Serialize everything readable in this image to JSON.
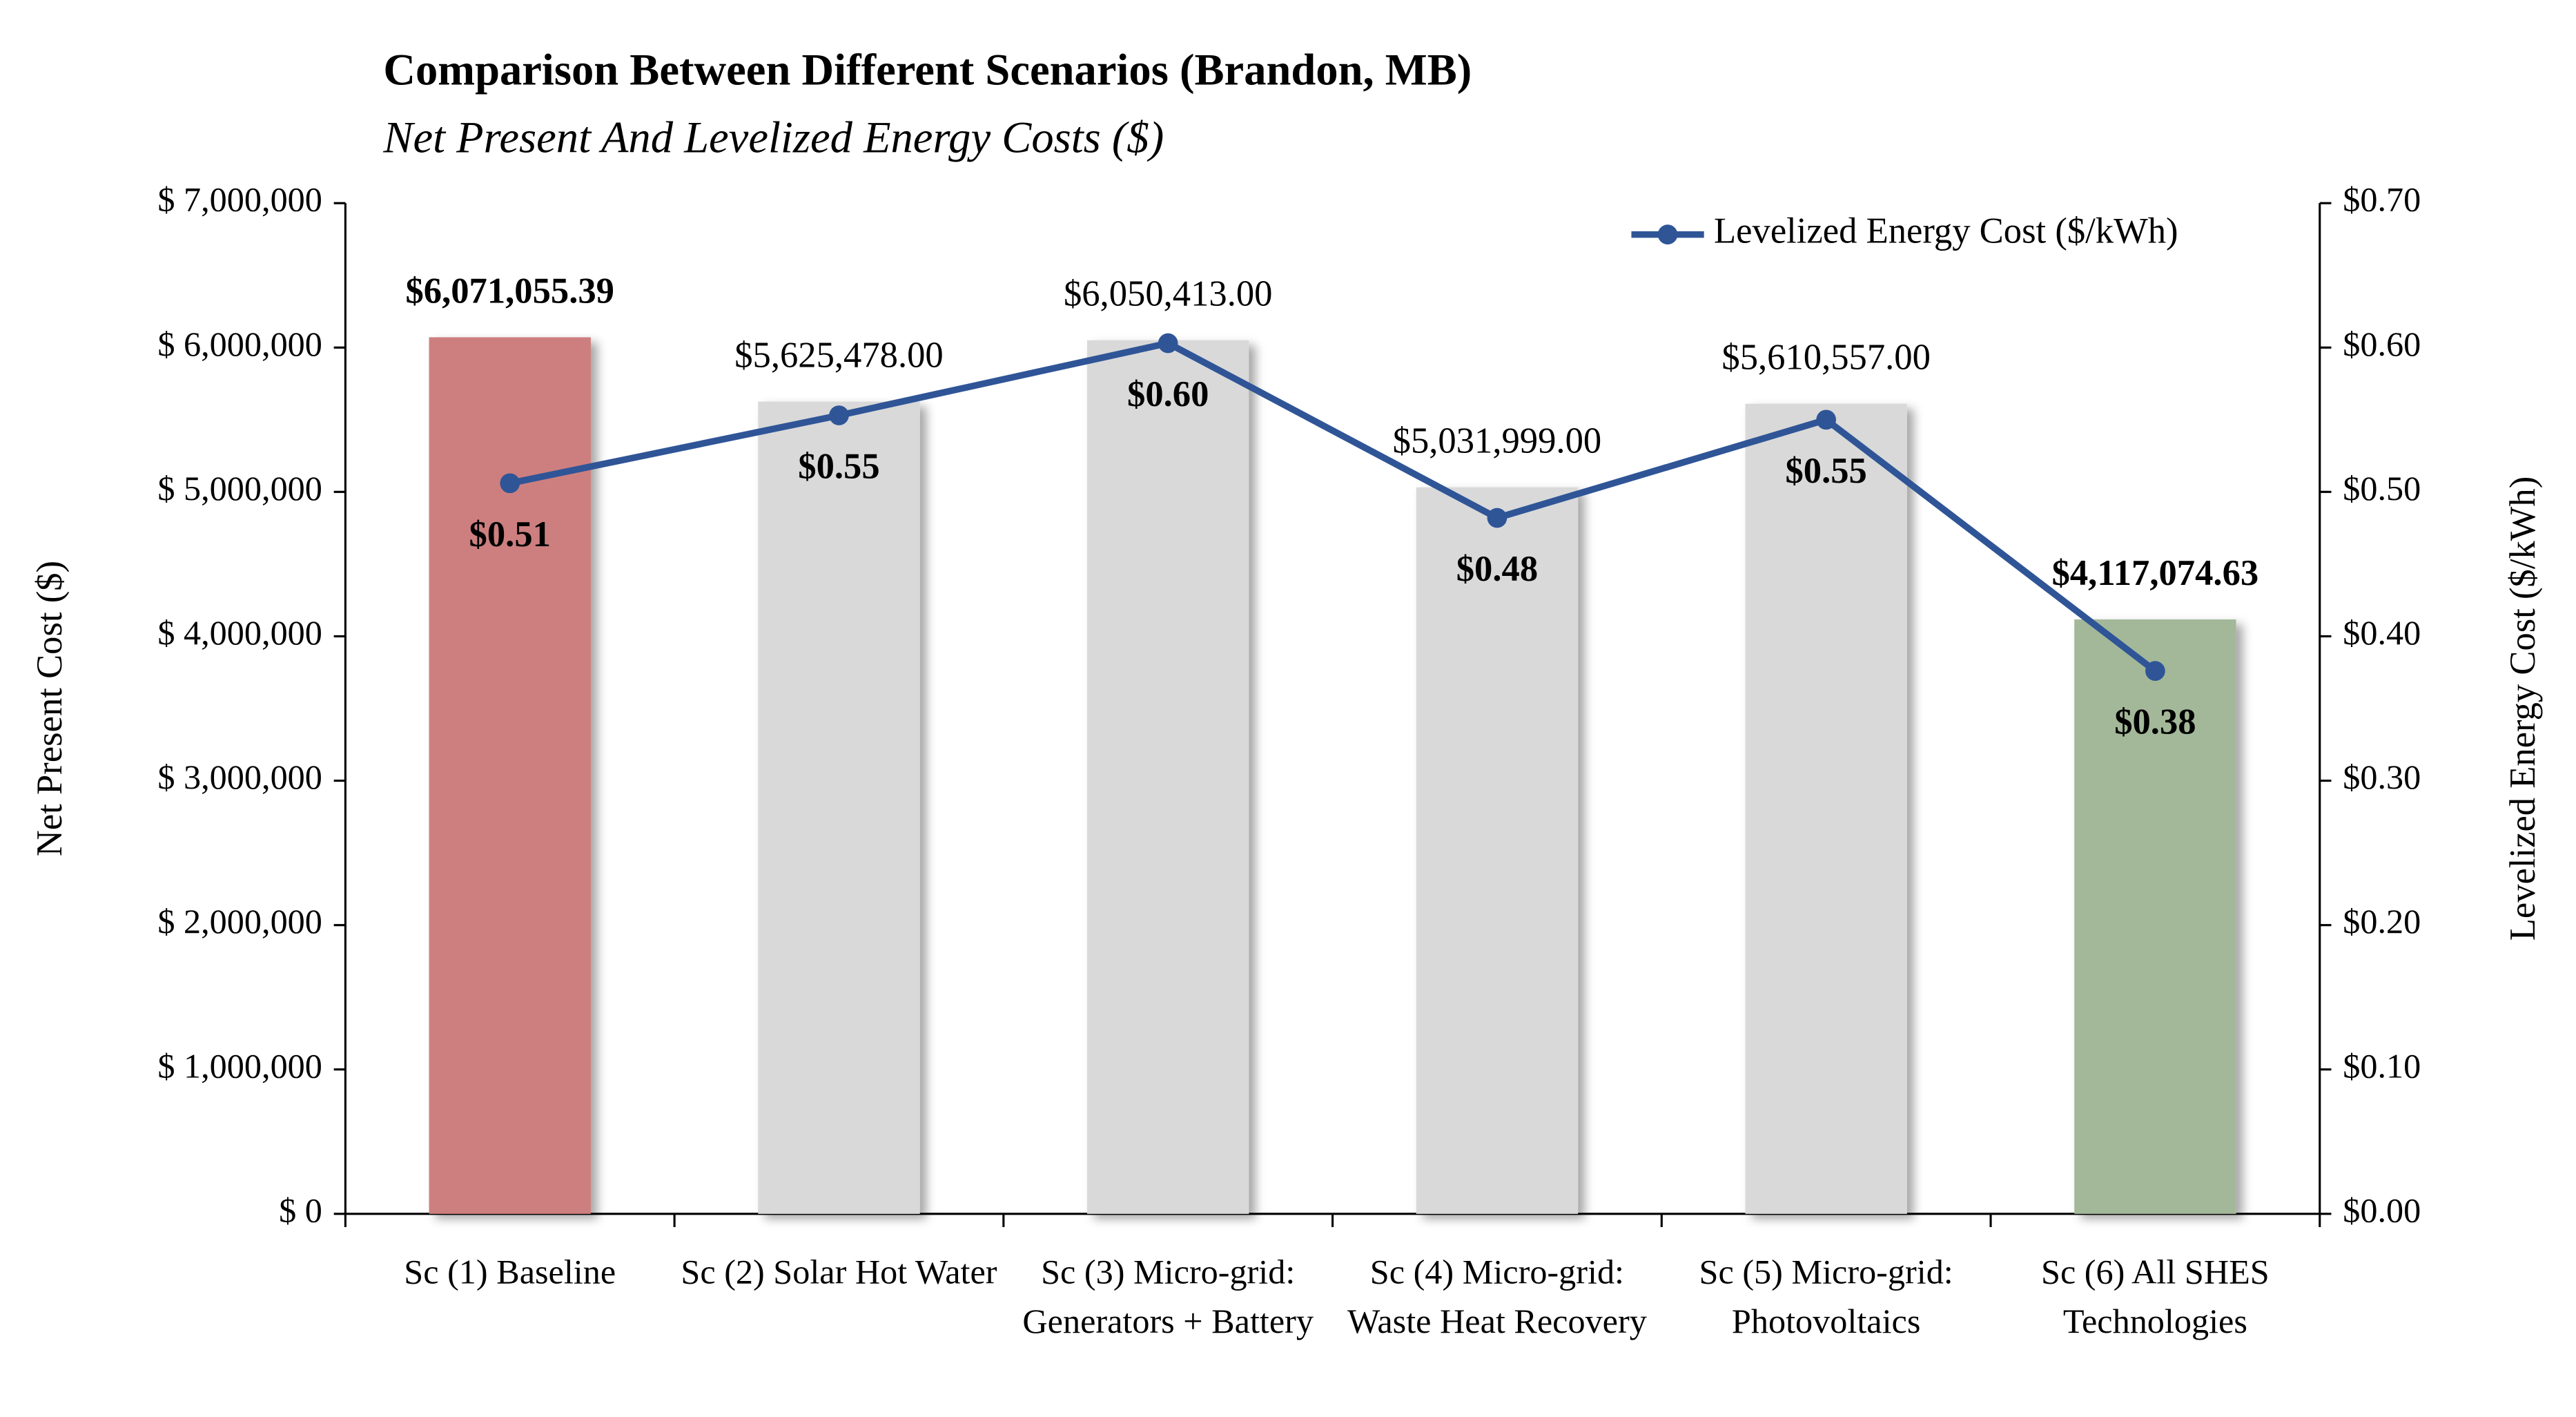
{
  "chart_data": {
    "type": "bar",
    "title": "Comparison Between Different Scenarios (Brandon, MB)",
    "subtitle": "Net Present And Levelized Energy Costs ($)",
    "y_label": "Net Present Cost ($)",
    "y2_label": "Levelized Energy Cost ($/kWh)",
    "categories": [
      "Sc (1) Baseline",
      "Sc (2) Solar Hot Water",
      "Sc (3) Micro-grid: Generators + Battery",
      "Sc (4) Micro-grid: Waste Heat Recovery",
      "Sc (5) Micro-grid: Photovoltaics",
      "Sc (6) All SHES Technologies"
    ],
    "series": [
      {
        "type": "bar",
        "colors": [
          "#cd7f7f",
          "#d9d9d9",
          "#d9d9d9",
          "#d9d9d9",
          "#d9d9d9",
          "#a3b899"
        ],
        "label_colors": [
          "#c00000",
          "#000000",
          "#000000",
          "#000000",
          "#000000",
          "#5b8c3a"
        ],
        "label_bold": [
          true,
          false,
          false,
          false,
          false,
          true
        ],
        "values": [
          6071055.39,
          5625478.0,
          6050413.0,
          5031999.0,
          5610557.0,
          4117074.63
        ],
        "value_labels": [
          "$6,071,055.39",
          "$5,625,478.00",
          "$6,050,413.00",
          "$5,031,999.00",
          "$5,610,557.00",
          "$4,117,074.63"
        ]
      },
      {
        "type": "line",
        "axis": "y2",
        "name": "Levelized Energy Cost ($/kWh)",
        "color": "#2f5597",
        "values": [
          0.506,
          0.553,
          0.603,
          0.482,
          0.55,
          0.376
        ],
        "value_labels": [
          "$0.51",
          "$0.55",
          "$0.60",
          "$0.48",
          "$0.55",
          "$0.38"
        ]
      }
    ],
    "ylim": [
      0,
      7000000
    ],
    "yticks": [
      {
        "value": 0,
        "label": "$ 0"
      },
      {
        "value": 1000000,
        "label": "$ 1,000,000"
      },
      {
        "value": 2000000,
        "label": "$ 2,000,000"
      },
      {
        "value": 3000000,
        "label": "$ 3,000,000"
      },
      {
        "value": 4000000,
        "label": "$ 4,000,000"
      },
      {
        "value": 5000000,
        "label": "$ 5,000,000"
      },
      {
        "value": 6000000,
        "label": "$ 6,000,000"
      },
      {
        "value": 7000000,
        "label": "$ 7,000,000"
      }
    ],
    "y2lim": [
      0,
      0.7
    ],
    "y2ticks": [
      {
        "value": 0,
        "label": "$0.00"
      },
      {
        "value": 0.1,
        "label": "$0.10"
      },
      {
        "value": 0.2,
        "label": "$0.20"
      },
      {
        "value": 0.3,
        "label": "$0.30"
      },
      {
        "value": 0.4,
        "label": "$0.40"
      },
      {
        "value": 0.5,
        "label": "$0.50"
      },
      {
        "value": 0.6,
        "label": "$0.60"
      },
      {
        "value": 0.7,
        "label": "$0.70"
      }
    ],
    "grid": false,
    "legend": "top-right"
  }
}
